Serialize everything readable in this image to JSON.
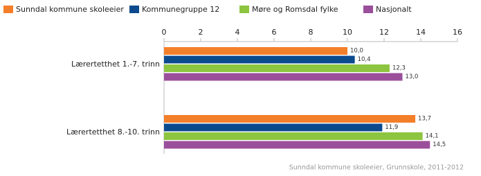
{
  "chart_data": {
    "type": "hbar",
    "categories": [
      "Lærertetthet 1.-7. trinn",
      "Lærertetthet 8.-10. trinn"
    ],
    "series": [
      {
        "name": "Sunndal kommune skoleeier",
        "color": "#f47f2a",
        "values": [
          10.0,
          13.7
        ],
        "value_labels": [
          "10,0",
          "13,7"
        ]
      },
      {
        "name": "Kommunegruppe 12",
        "color": "#0b4a8d",
        "values": [
          10.4,
          11.9
        ],
        "value_labels": [
          "10,4",
          "11,9"
        ]
      },
      {
        "name": "Møre og Romsdal fylke",
        "color": "#8dc540",
        "values": [
          12.3,
          14.1
        ],
        "value_labels": [
          "12,3",
          "14,1"
        ]
      },
      {
        "name": "Nasjonalt",
        "color": "#9b4f9b",
        "values": [
          13.0,
          14.5
        ],
        "value_labels": [
          "13,0",
          "14,5"
        ]
      }
    ],
    "xlim": [
      0,
      16
    ],
    "xticks": [
      0,
      2,
      4,
      6,
      8,
      10,
      12,
      14,
      16
    ],
    "footer": "Sunndal kommune skoleeier, Grunnskole, 2011-2012"
  }
}
